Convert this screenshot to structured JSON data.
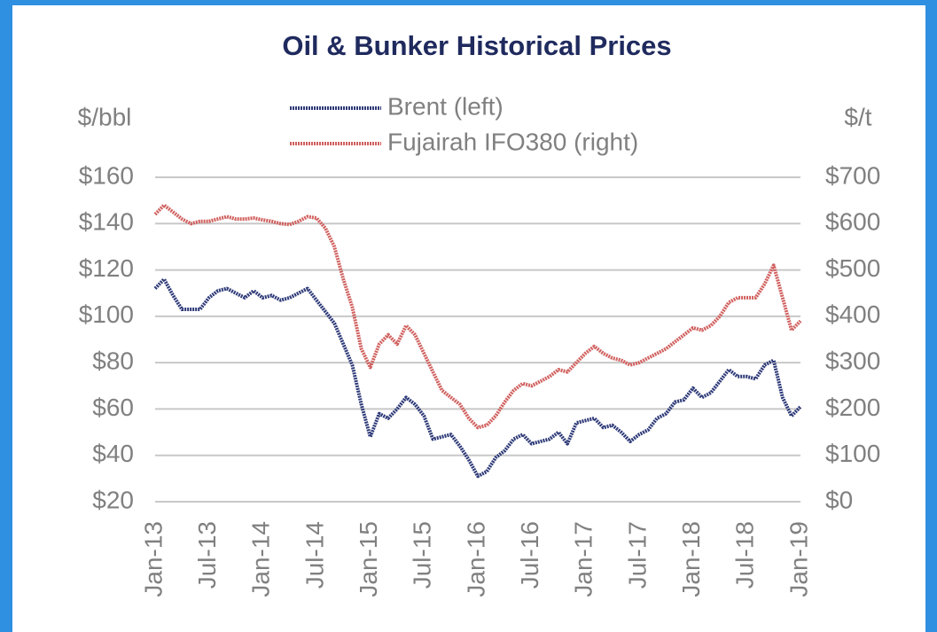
{
  "chart_data": {
    "type": "line",
    "title": "Oil & Bunker Historical Prices",
    "y_label": "$/bbl",
    "y2_label": "$/t",
    "legend": "top",
    "grid": true,
    "categories": [
      "Jan-13",
      null,
      null,
      null,
      null,
      null,
      "Jul-13",
      null,
      null,
      null,
      null,
      null,
      "Jan-14",
      null,
      null,
      null,
      null,
      null,
      "Jul-14",
      null,
      null,
      null,
      null,
      null,
      "Jan-15",
      null,
      null,
      null,
      null,
      null,
      "Jul-15",
      null,
      null,
      null,
      null,
      null,
      "Jan-16",
      null,
      null,
      null,
      null,
      null,
      "Jul-16",
      null,
      null,
      null,
      null,
      null,
      "Jan-17",
      null,
      null,
      null,
      null,
      null,
      "Jul-17",
      null,
      null,
      null,
      null,
      null,
      "Jan-18",
      null,
      null,
      null,
      null,
      null,
      "Jul-18",
      null,
      null,
      null,
      null,
      null,
      "Jan-19"
    ],
    "series": [
      {
        "name": "Brent (left)",
        "color": "#2e3a78",
        "values": [
          112,
          116,
          109,
          103,
          103,
          103,
          108,
          111,
          112,
          110,
          108,
          111,
          108,
          109,
          107,
          108,
          110,
          112,
          107,
          102,
          97,
          88,
          79,
          62,
          48,
          58,
          56,
          60,
          65,
          62,
          57,
          47,
          48,
          49,
          44,
          38,
          31,
          33,
          39,
          42,
          47,
          49,
          45,
          46,
          47,
          50,
          45,
          54,
          55,
          56,
          52,
          53,
          50,
          46,
          49,
          51,
          56,
          58,
          63,
          64,
          69,
          65,
          67,
          72,
          77,
          74,
          74,
          73,
          79,
          81,
          65,
          57,
          61
        ]
      },
      {
        "name": "Fujairah IFO380 (right)",
        "color": "#d0605e",
        "axis": "y2",
        "values": [
          620,
          640,
          625,
          610,
          600,
          605,
          605,
          610,
          615,
          610,
          610,
          612,
          608,
          605,
          600,
          598,
          605,
          615,
          612,
          590,
          550,
          480,
          420,
          330,
          290,
          340,
          360,
          340,
          380,
          360,
          320,
          280,
          240,
          225,
          210,
          180,
          160,
          165,
          185,
          215,
          240,
          255,
          250,
          260,
          270,
          285,
          280,
          300,
          320,
          335,
          320,
          310,
          305,
          295,
          300,
          310,
          320,
          330,
          345,
          360,
          375,
          370,
          380,
          400,
          430,
          440,
          440,
          440,
          470,
          510,
          440,
          370,
          390
        ]
      }
    ],
    "ylim": [
      20,
      160
    ],
    "yticks": [
      {
        "value": 20,
        "label": "$20"
      },
      {
        "value": 40,
        "label": "$40"
      },
      {
        "value": 60,
        "label": "$60"
      },
      {
        "value": 80,
        "label": "$80"
      },
      {
        "value": 100,
        "label": "$100"
      },
      {
        "value": 120,
        "label": "$120"
      },
      {
        "value": 140,
        "label": "$140"
      },
      {
        "value": 160,
        "label": "$160"
      }
    ],
    "y2lim": [
      0,
      700
    ],
    "y2ticks": [
      {
        "value": 0,
        "label": "$0"
      },
      {
        "value": 100,
        "label": "$100"
      },
      {
        "value": 200,
        "label": "$200"
      },
      {
        "value": 300,
        "label": "$300"
      },
      {
        "value": 400,
        "label": "$400"
      },
      {
        "value": 500,
        "label": "$500"
      },
      {
        "value": 600,
        "label": "$600"
      },
      {
        "value": 700,
        "label": "$700"
      }
    ]
  }
}
